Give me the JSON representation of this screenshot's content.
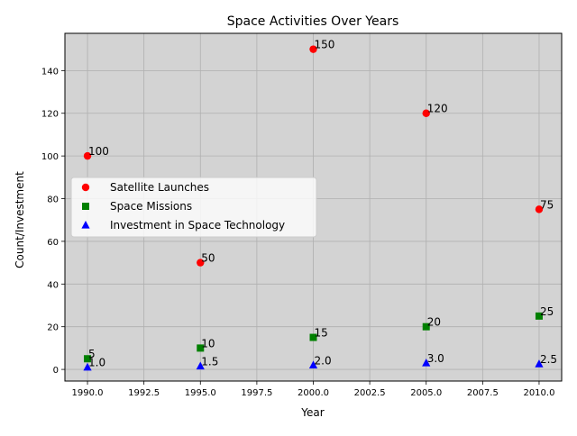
{
  "chart_data": {
    "type": "scatter",
    "title": "Space Activities Over Years",
    "xlabel": "Year",
    "ylabel": "Count/Investment",
    "xlim": [
      1989.0,
      2011.0
    ],
    "ylim": [
      -5.45,
      157.45
    ],
    "xticks": [
      1990.0,
      1992.5,
      1995.0,
      1997.5,
      2000.0,
      2002.5,
      2005.0,
      2007.5,
      2010.0
    ],
    "xtick_labels": [
      "1990.0",
      "1992.5",
      "1995.0",
      "1997.5",
      "2000.0",
      "2002.5",
      "2005.0",
      "2007.5",
      "2010.0"
    ],
    "yticks": [
      0,
      20,
      40,
      60,
      80,
      100,
      120,
      140
    ],
    "ytick_labels": [
      "0",
      "20",
      "40",
      "60",
      "80",
      "100",
      "120",
      "140"
    ],
    "grid": true,
    "plot_background": "#d3d3d3",
    "legend_position": "center-left",
    "series": [
      {
        "name": "Satellite Launches",
        "marker": "circle",
        "color": "#ff0000",
        "x": [
          1990,
          1995,
          2000,
          2005,
          2010
        ],
        "y": [
          100,
          50,
          150,
          120,
          75
        ],
        "labels": [
          "100",
          "50",
          "150",
          "120",
          "75"
        ]
      },
      {
        "name": "Space Missions",
        "marker": "square",
        "color": "#008000",
        "x": [
          1990,
          1995,
          2000,
          2005,
          2010
        ],
        "y": [
          5,
          10,
          15,
          20,
          25
        ],
        "labels": [
          "5",
          "10",
          "15",
          "20",
          "25"
        ]
      },
      {
        "name": "Investment in Space Technology",
        "marker": "triangle",
        "color": "#0000ff",
        "x": [
          1990,
          1995,
          2000,
          2005,
          2010
        ],
        "y": [
          1.0,
          1.5,
          2.0,
          3.0,
          2.5
        ],
        "labels": [
          "1.0",
          "1.5",
          "2.0",
          "3.0",
          "2.5"
        ]
      }
    ]
  }
}
